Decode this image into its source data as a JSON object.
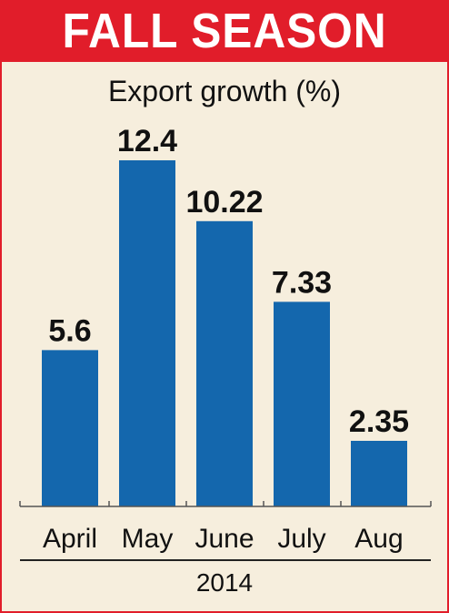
{
  "banner": {
    "title": "FALL SEASON",
    "color": "#e11d2a"
  },
  "chart_data": {
    "type": "bar",
    "title": "Export growth (%)",
    "categories": [
      "April",
      "May",
      "June",
      "July",
      "Aug"
    ],
    "values": [
      5.6,
      12.4,
      10.22,
      7.33,
      2.35
    ],
    "value_labels": [
      "5.6",
      "12.4",
      "10.22",
      "7.33",
      "2.35"
    ],
    "xlabel": "2014",
    "ylabel": "",
    "ylim": [
      0,
      12.4
    ],
    "grid": false,
    "bar_color": "#1467ad"
  }
}
